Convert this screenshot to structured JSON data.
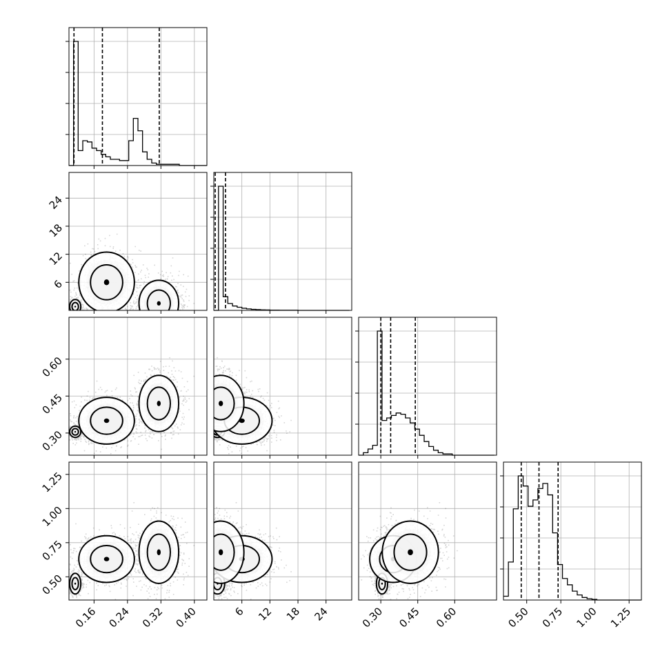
{
  "chart_data": {
    "type": "corner",
    "parameters": [
      {
        "range": [
          0.1,
          0.43
        ],
        "ticks": [
          0.16,
          0.24,
          0.32,
          0.4
        ],
        "tick_labels": [
          "0.16",
          "0.24",
          "0.32",
          "0.40"
        ]
      },
      {
        "range": [
          0,
          29.5
        ],
        "ticks": [
          6,
          12,
          18,
          24
        ],
        "tick_labels": [
          "6",
          "12",
          "18",
          "24"
        ]
      },
      {
        "range": [
          0.21,
          0.77
        ],
        "ticks": [
          0.3,
          0.45,
          0.6
        ],
        "tick_labels": [
          "0.30",
          "0.45",
          "0.60"
        ]
      },
      {
        "range": [
          0.33,
          1.34
        ],
        "ticks": [
          0.5,
          0.75,
          1.0,
          1.25
        ],
        "tick_labels": [
          "0.50",
          "0.75",
          "1.00",
          "1.25"
        ]
      }
    ],
    "histograms": [
      {
        "bin_edges": [
          0.1,
          0.111,
          0.122,
          0.133,
          0.144,
          0.155,
          0.166,
          0.177,
          0.188,
          0.199,
          0.21,
          0.221,
          0.232,
          0.243,
          0.254,
          0.265,
          0.276,
          0.287,
          0.298,
          0.309,
          0.32,
          0.331,
          0.342,
          0.353,
          0.364,
          0.375,
          0.386,
          0.397,
          0.408,
          0.419,
          0.43
        ],
        "counts": [
          0,
          1.0,
          0.12,
          0.2,
          0.19,
          0.14,
          0.12,
          0.09,
          0.07,
          0.05,
          0.05,
          0.04,
          0.04,
          0.2,
          0.38,
          0.28,
          0.11,
          0.05,
          0.02,
          0.01,
          0.01,
          0.01,
          0.01,
          0.01,
          0,
          0,
          0,
          0,
          0,
          0
        ],
        "quantiles": [
          0.112,
          0.18,
          0.316
        ]
      },
      {
        "bin_edges": [
          0,
          1,
          2,
          3,
          4,
          5,
          6,
          7,
          8,
          9,
          10,
          11,
          12,
          13,
          14,
          15,
          16,
          17,
          18,
          19,
          20,
          21,
          22,
          23,
          24,
          25,
          26,
          27,
          28,
          29
        ],
        "counts": [
          0,
          1.0,
          0.11,
          0.055,
          0.035,
          0.025,
          0.017,
          0.012,
          0.008,
          0.006,
          0.004,
          0.003,
          0.002,
          0.002,
          0.001,
          0.001,
          0.001,
          0.001,
          0,
          0,
          0,
          0,
          0,
          0,
          0,
          0,
          0,
          0,
          0
        ],
        "quantiles": [
          0.3,
          2.5
        ]
      },
      {
        "bin_edges": [
          0.21,
          0.229,
          0.248,
          0.267,
          0.286,
          0.305,
          0.324,
          0.343,
          0.362,
          0.381,
          0.4,
          0.419,
          0.438,
          0.457,
          0.476,
          0.495,
          0.514,
          0.533,
          0.552,
          0.571,
          0.59,
          0.609,
          0.628,
          0.647,
          0.666,
          0.685,
          0.704,
          0.723,
          0.742,
          0.761
        ],
        "counts": [
          0,
          0.02,
          0.05,
          0.08,
          1.0,
          0.28,
          0.3,
          0.32,
          0.34,
          0.33,
          0.3,
          0.26,
          0.21,
          0.16,
          0.11,
          0.07,
          0.04,
          0.02,
          0.01,
          0.01,
          0,
          0,
          0,
          0,
          0,
          0,
          0,
          0,
          0
        ],
        "quantiles": [
          0.3,
          0.34,
          0.44
        ]
      },
      {
        "bin_edges": [
          0.33,
          0.366,
          0.402,
          0.438,
          0.474,
          0.51,
          0.546,
          0.582,
          0.618,
          0.654,
          0.69,
          0.726,
          0.762,
          0.798,
          0.834,
          0.87,
          0.906,
          0.942,
          0.978,
          1.014,
          1.05,
          1.086,
          1.122,
          1.158,
          1.194,
          1.23,
          1.266,
          1.302,
          1.338
        ],
        "counts": [
          0.03,
          0.3,
          0.72,
          0.98,
          0.9,
          0.74,
          0.79,
          0.88,
          0.92,
          0.83,
          0.53,
          0.28,
          0.17,
          0.12,
          0.07,
          0.04,
          0.02,
          0.01,
          0.005,
          0,
          0,
          0,
          0,
          0,
          0,
          0,
          0,
          0
        ],
        "quantiles": [
          0.46,
          0.59,
          0.73
        ]
      }
    ],
    "sample_clusters": [
      {
        "weight": 0.3,
        "mean": [
          0.115,
          0.8,
          0.305,
          0.45
        ],
        "sd": [
          0.007,
          0.8,
          0.012,
          0.04
        ]
      },
      {
        "weight": 0.32,
        "mean": [
          0.19,
          6.0,
          0.35,
          0.63
        ],
        "sd": [
          0.035,
          3.4,
          0.05,
          0.09
        ]
      },
      {
        "weight": 0.38,
        "mean": [
          0.315,
          1.5,
          0.42,
          0.68
        ],
        "sd": [
          0.025,
          2.6,
          0.06,
          0.12
        ]
      }
    ],
    "contour_levels": [
      "outer",
      "inner"
    ],
    "grid": true,
    "title": "",
    "xlabel": "",
    "ylabel": ""
  }
}
